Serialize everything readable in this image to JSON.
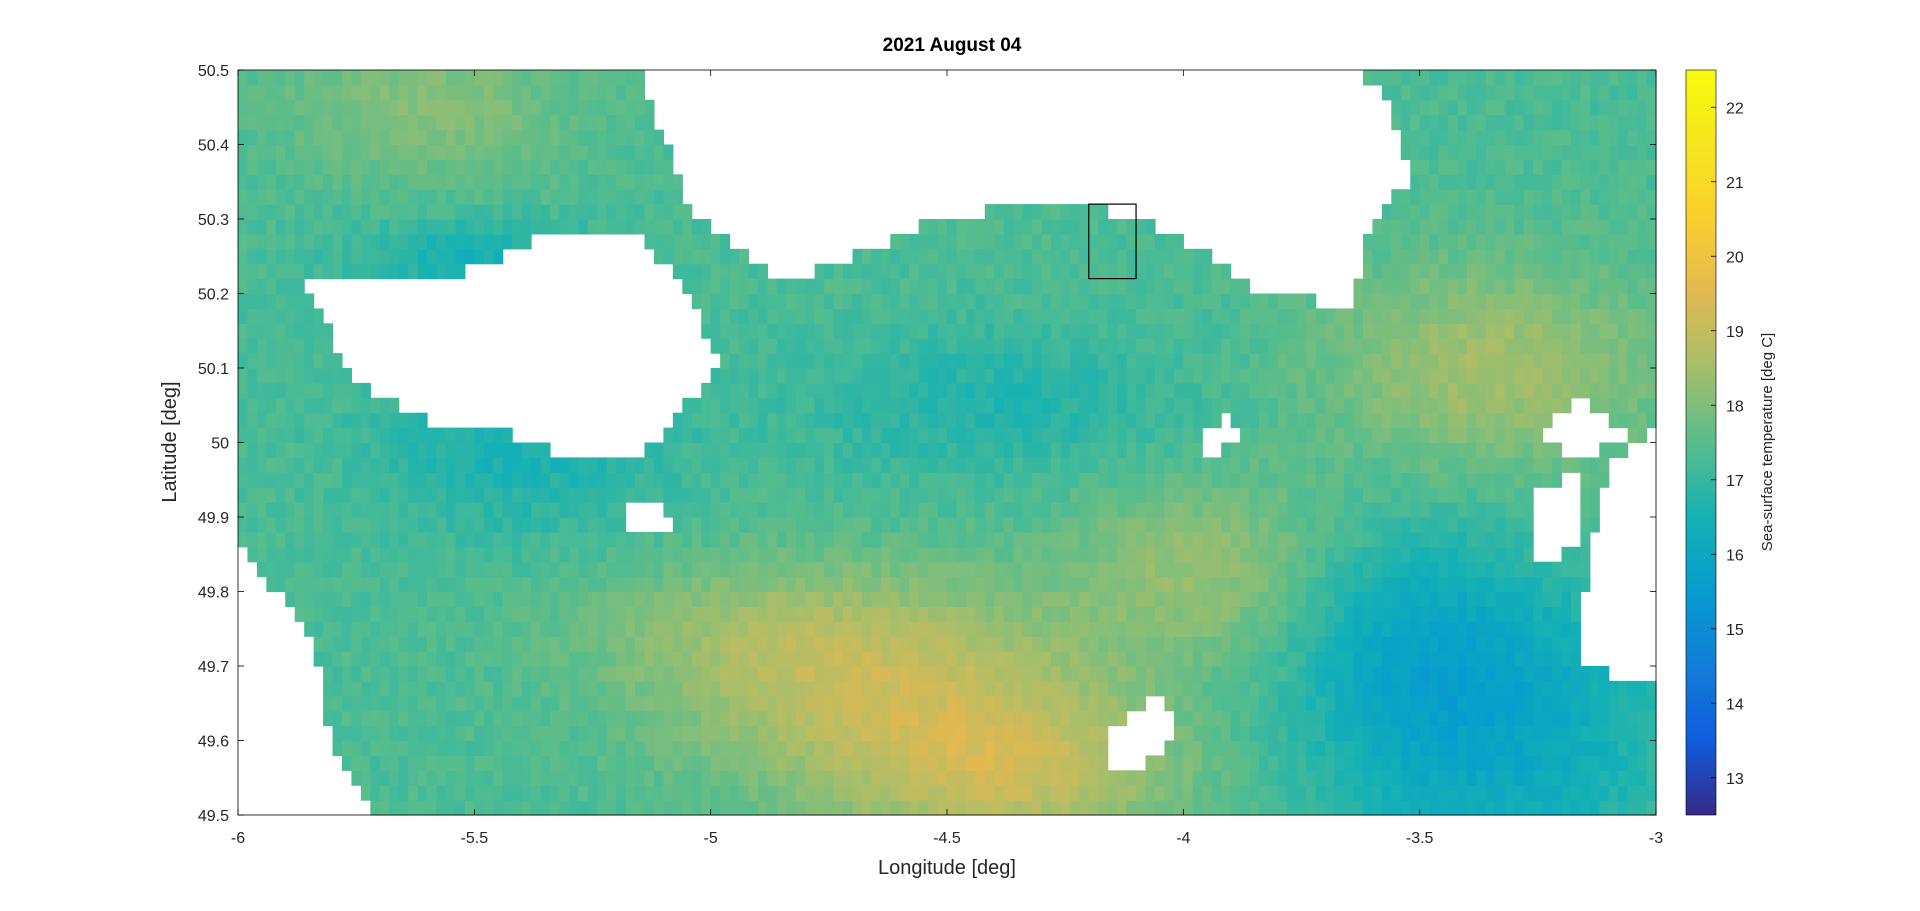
{
  "chart_data": {
    "type": "heatmap",
    "title": "2021 August 04",
    "xlabel": "Longitude [deg]",
    "ylabel": "Latitude [deg]",
    "xlim": [
      -6,
      -3
    ],
    "ylim": [
      49.5,
      50.5
    ],
    "xticks": [
      -6,
      -5.5,
      -5,
      -4.5,
      -4,
      -3.5,
      -3
    ],
    "xtick_labels": [
      "-6",
      "-5.5",
      "-5",
      "-4.5",
      "-4",
      "-3.5",
      "-3"
    ],
    "yticks": [
      49.5,
      49.6,
      49.7,
      49.8,
      49.9,
      50,
      50.1,
      50.2,
      50.3,
      50.4,
      50.5
    ],
    "ytick_labels": [
      "49.5",
      "49.6",
      "49.7",
      "49.8",
      "49.9",
      "50",
      "50.1",
      "50.2",
      "50.3",
      "50.4",
      "50.5"
    ],
    "colorbar": {
      "label": "Sea-surface temperature [deg C]",
      "range": [
        12.5,
        22.5
      ],
      "ticks": [
        13,
        14,
        15,
        16,
        17,
        18,
        19,
        20,
        21,
        22
      ],
      "tick_labels": [
        "13",
        "14",
        "15",
        "16",
        "17",
        "18",
        "19",
        "20",
        "21",
        "22"
      ],
      "colormap": "parula"
    },
    "annotation_box": {
      "lon": [
        -4.2,
        -4.1
      ],
      "lat": [
        50.22,
        50.32
      ]
    },
    "value_field": {
      "resolution_deg": 0.02,
      "background_C": 17.3,
      "blobs": [
        {
          "lon": -4.6,
          "lat": 49.66,
          "rlon": 0.45,
          "rlat": 0.14,
          "dT": 1.5
        },
        {
          "lon": -4.35,
          "lat": 49.55,
          "rlon": 0.35,
          "rlat": 0.1,
          "dT": 1.3
        },
        {
          "lon": -3.95,
          "lat": 49.83,
          "rlon": 0.3,
          "rlat": 0.12,
          "dT": 1.0
        },
        {
          "lon": -3.35,
          "lat": 50.1,
          "rlon": 0.35,
          "rlat": 0.14,
          "dT": 1.2
        },
        {
          "lon": -5.6,
          "lat": 50.45,
          "rlon": 0.3,
          "rlat": 0.1,
          "dT": 0.8
        },
        {
          "lon": -4.9,
          "lat": 49.75,
          "rlon": 0.4,
          "rlat": 0.1,
          "dT": 0.7
        },
        {
          "lon": -4.4,
          "lat": 50.05,
          "rlon": 0.4,
          "rlat": 0.1,
          "dT": -0.6
        },
        {
          "lon": -5.4,
          "lat": 50.0,
          "rlon": 0.3,
          "rlat": 0.12,
          "dT": -0.8
        },
        {
          "lon": -5.5,
          "lat": 50.25,
          "rlon": 0.25,
          "rlat": 0.05,
          "dT": -0.8
        },
        {
          "lon": -3.35,
          "lat": 49.62,
          "rlon": 0.35,
          "rlat": 0.2,
          "dT": -1.4
        },
        {
          "lon": -3.55,
          "lat": 49.75,
          "rlon": 0.25,
          "rlat": 0.15,
          "dT": -0.8
        }
      ],
      "missing_regions": [
        {
          "lon": [
            -5.85,
            -5.55,
            -5.3,
            -5.15,
            -5.05,
            -4.98,
            -5.15,
            -5.3,
            -5.45,
            -5.6,
            -5.75,
            -5.85
          ],
          "lat": [
            50.21,
            50.22,
            50.29,
            50.28,
            50.2,
            50.1,
            49.98,
            49.98,
            50.02,
            50.03,
            50.08,
            50.2
          ]
        },
        {
          "lon": [
            -5.15,
            -5.05,
            -4.85,
            -4.55,
            -4.3,
            -4.1,
            -4.0,
            -3.85,
            -3.65,
            -3.6,
            -3.52,
            -3.55,
            -3.55,
            -3.6,
            -3.65,
            -4.2,
            -4.6,
            -5.1
          ],
          "lat": [
            50.5,
            50.32,
            50.21,
            50.29,
            50.33,
            50.3,
            50.27,
            50.21,
            50.18,
            50.3,
            50.35,
            50.42,
            50.45,
            50.48,
            50.5,
            50.5,
            50.5,
            50.5
          ]
        },
        {
          "lon": [
            -6.0,
            -5.95,
            -5.85,
            -5.8,
            -5.72,
            -5.72,
            -6.0
          ],
          "lat": [
            49.88,
            49.82,
            49.75,
            49.6,
            49.5,
            49.5,
            49.5
          ]
        },
        {
          "lon": [
            -3.0,
            -3.15,
            -3.15,
            -3.12,
            -3.1,
            -3.05,
            -3.0
          ],
          "lat": [
            49.67,
            49.7,
            49.8,
            49.92,
            49.98,
            49.99,
            50.02
          ]
        },
        {
          "lon": [
            -4.15,
            -4.05,
            -4.0,
            -4.08,
            -4.15
          ],
          "lat": [
            49.62,
            49.66,
            49.62,
            49.57,
            49.57
          ]
        },
        {
          "lon": [
            -3.95,
            -3.9,
            -3.88,
            -3.95
          ],
          "lat": [
            50.02,
            50.04,
            50.0,
            49.98
          ]
        },
        {
          "lon": [
            -5.2,
            -5.12,
            -5.08,
            -5.15
          ],
          "lat": [
            49.9,
            49.93,
            49.88,
            49.87
          ]
        },
        {
          "lon": [
            -3.25,
            -3.15,
            -3.15,
            -3.25
          ],
          "lat": [
            49.93,
            49.97,
            49.87,
            49.83
          ]
        },
        {
          "lon": [
            -3.25,
            -3.15,
            -3.05,
            -3.18
          ],
          "lat": [
            50.02,
            50.06,
            50.0,
            49.98
          ]
        }
      ]
    }
  }
}
